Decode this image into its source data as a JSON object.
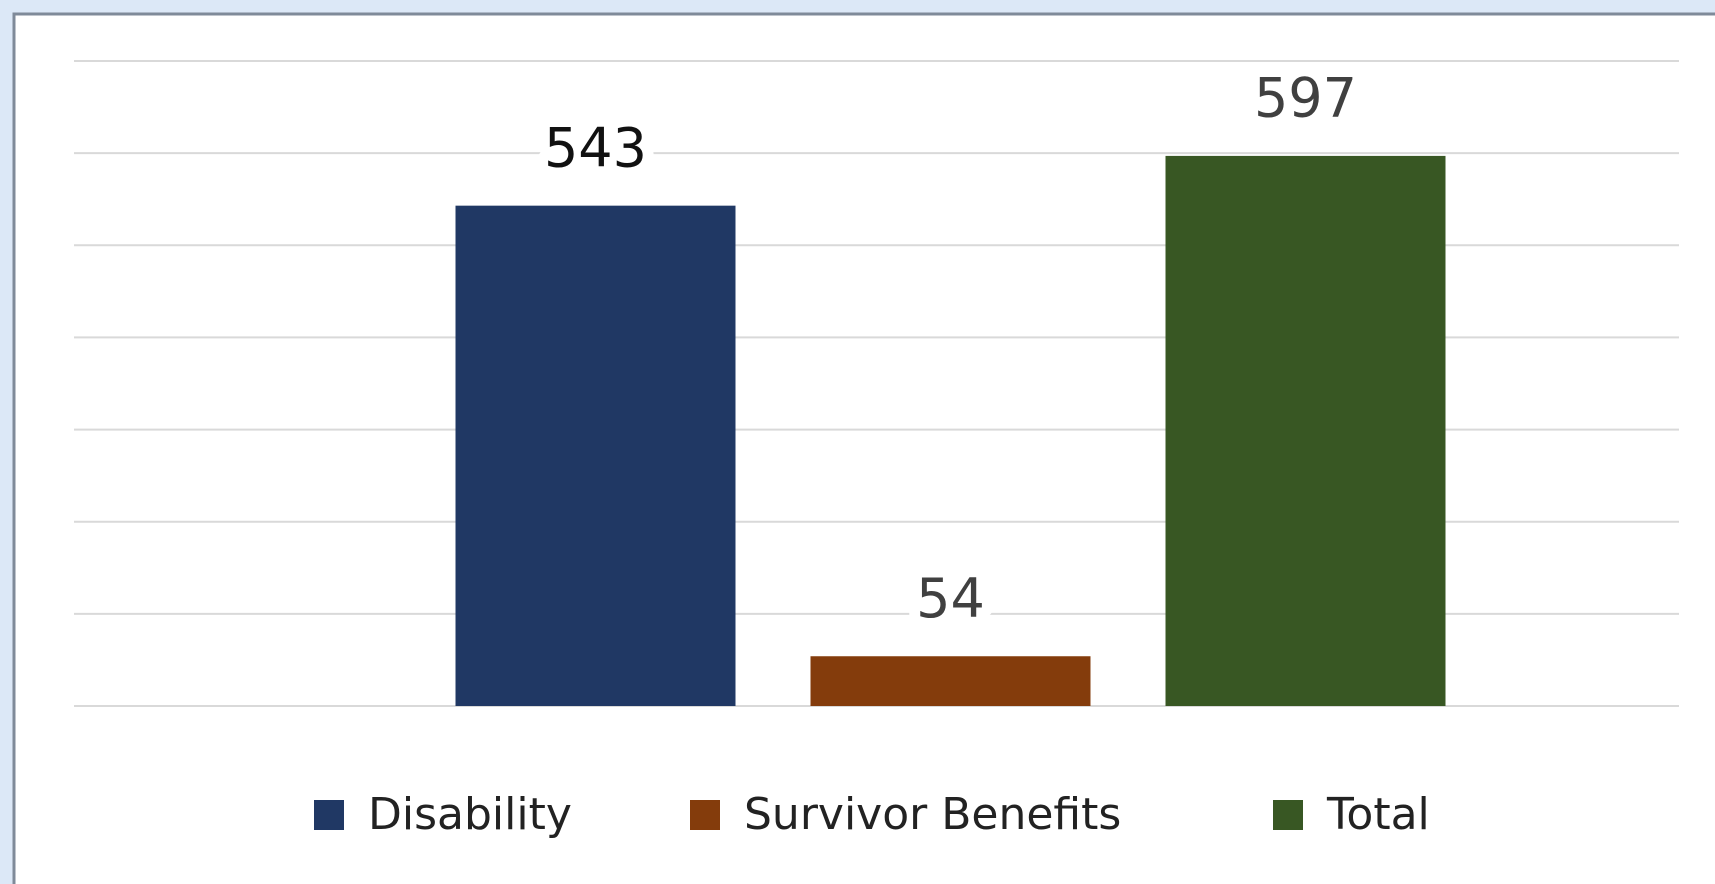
{
  "chart_data": {
    "type": "bar",
    "categories": [
      null
    ],
    "series": [
      {
        "name": "Disability",
        "color": "#203864",
        "values": [
          543
        ]
      },
      {
        "name": "Survivor Benefits",
        "color": "#843c0c",
        "values": [
          54
        ]
      },
      {
        "name": "Total",
        "color": "#385723",
        "values": [
          597
        ]
      }
    ],
    "ylim": [
      0,
      700
    ],
    "yticks": [
      0,
      100,
      200,
      300,
      400,
      500,
      600,
      700
    ],
    "grid": true,
    "legend": "bottom"
  }
}
